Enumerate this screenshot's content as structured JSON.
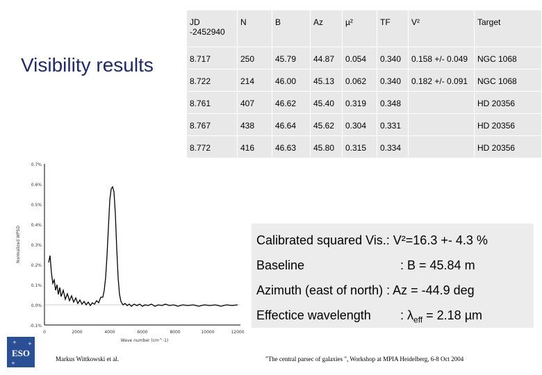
{
  "slide": {
    "title": "Visibility results",
    "footer_left": "Markus Wittkowski et al.",
    "footer_right": "\"The central parsec of galaxies \", Workshop at MPIA Heidelberg, 6-8 Oct 2004"
  },
  "table": {
    "headers": [
      "JD",
      "N",
      "B",
      "Az",
      "µ²",
      "TF",
      "V²",
      "Target"
    ],
    "header_sub": "-2452940",
    "rows": [
      [
        "8.717",
        "250",
        "45.79",
        "44.87",
        "0.054",
        "0.340",
        "0.158 +/- 0.049",
        "NGC 1068"
      ],
      [
        "8.722",
        "214",
        "46.00",
        "45.13",
        "0.062",
        "0.340",
        "0.182 +/- 0.091",
        "NGC 1068"
      ],
      [
        "8.761",
        "407",
        "46.62",
        "45.40",
        "0.319",
        "0.348",
        "",
        "HD 20356"
      ],
      [
        "8.767",
        "438",
        "46.64",
        "45.62",
        "0.304",
        "0.331",
        "",
        "HD 20356"
      ],
      [
        "8.772",
        "416",
        "46.63",
        "45.80",
        "0.315",
        "0.334",
        "",
        "HD 20356"
      ]
    ]
  },
  "results": {
    "calibrated_label": "Calibrated squared Vis.: ",
    "calibrated_value": "V²=16.3 +- 4.3 %",
    "baseline_label": "Baseline",
    "baseline_value": ": B = 45.84 m",
    "azimuth_label": "Azimuth (east of north)",
    "azimuth_value": " : Az = -44.9 deg",
    "wavelength_label": "Effectice wavelength",
    "wavelength_prefix": ": λ",
    "wavelength_sub": "eff",
    "wavelength_suffix": " = 2.18 µm"
  },
  "plot": {
    "ylabel": "Normalized WPSD",
    "xlabel": "Wave number (cm^-1)",
    "y_ticks": [
      "0.7%",
      "0.6%",
      "0.5%",
      "0.4%",
      "0.3%",
      "0.2%",
      "0.1%",
      "0.0%",
      "-0.1%"
    ],
    "x_ticks": [
      "0",
      "2000",
      "4000",
      "6000",
      "8000",
      "10000",
      "12000"
    ]
  },
  "logo": {
    "text": "ESO"
  }
}
